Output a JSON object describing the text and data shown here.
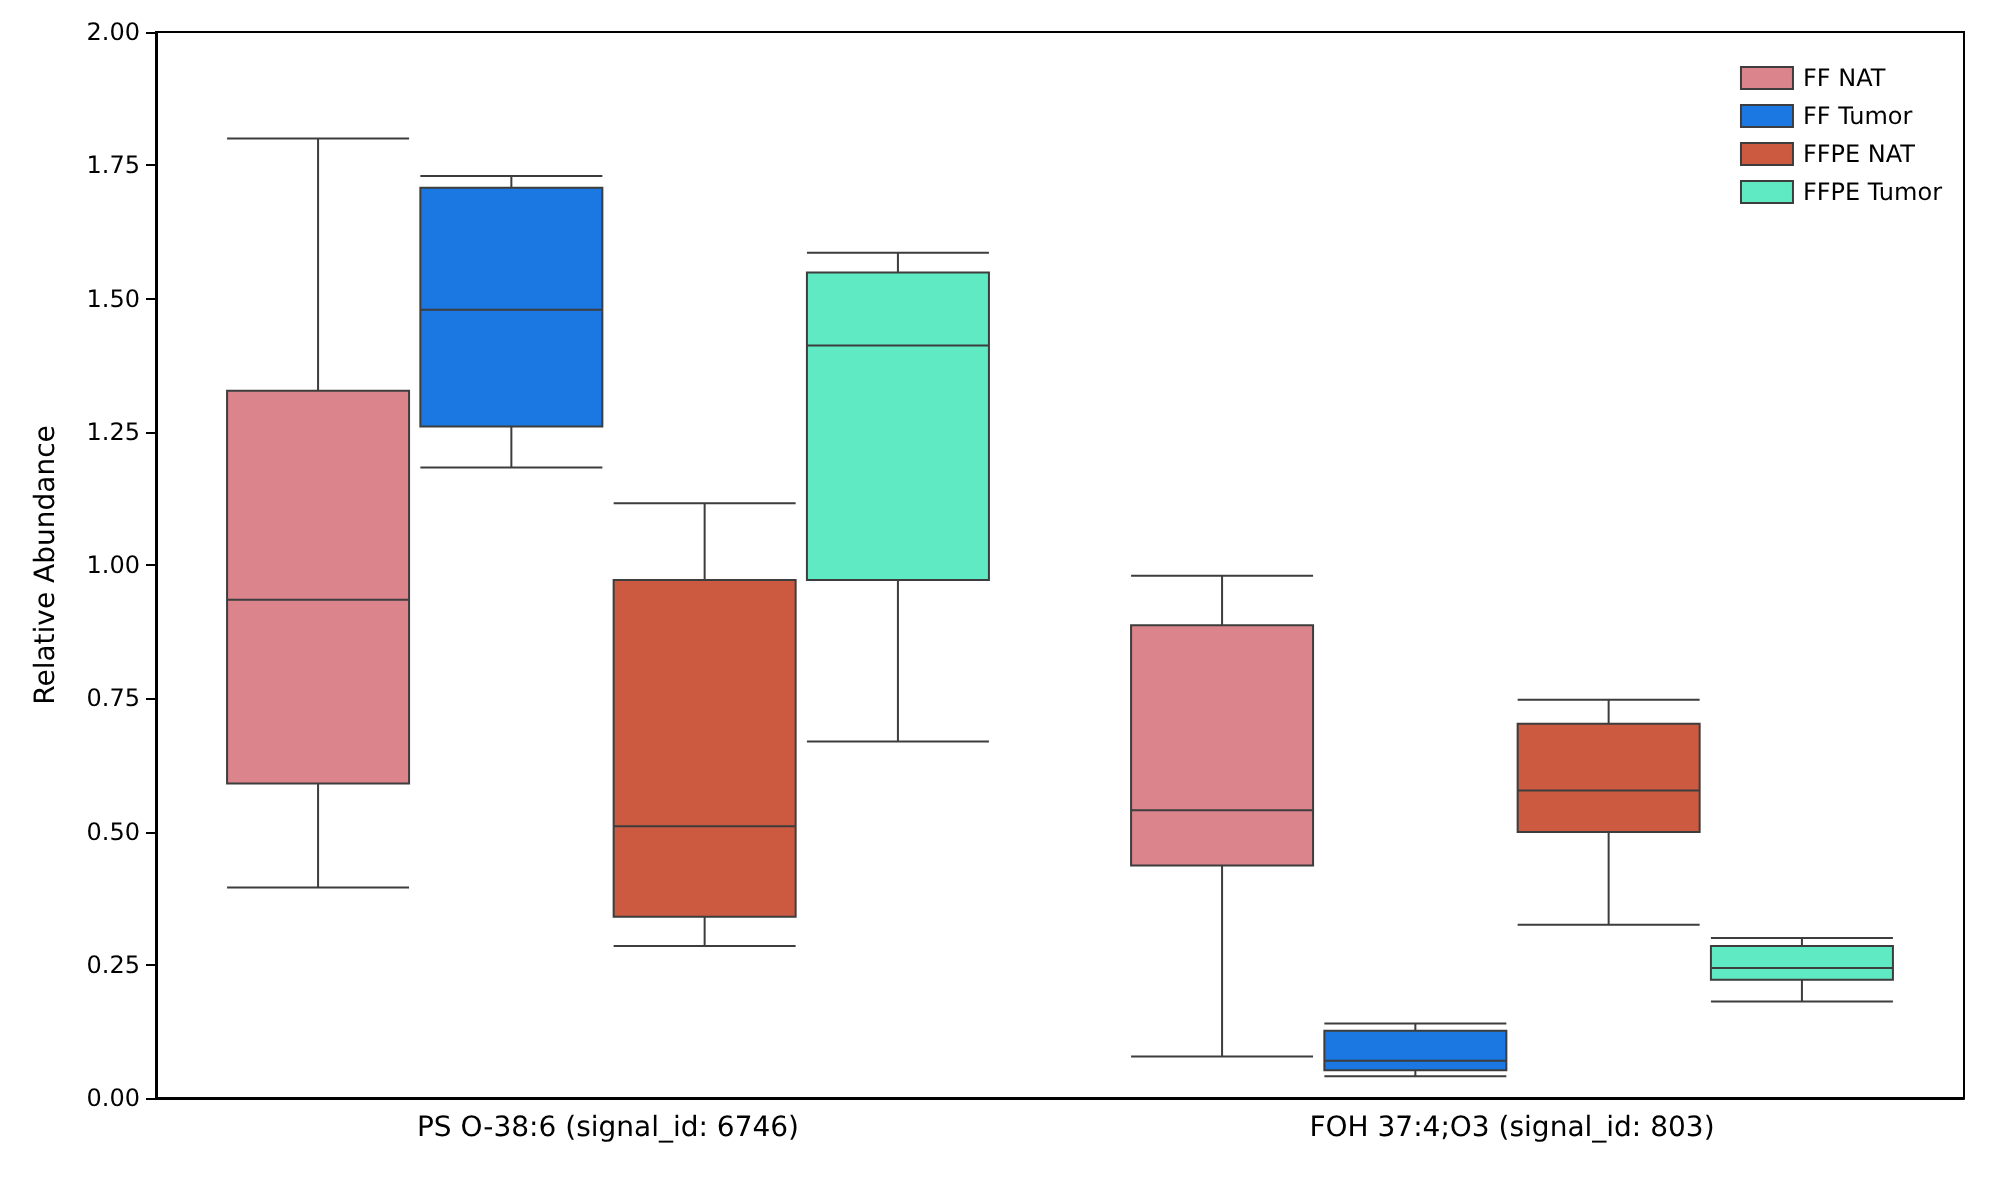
{
  "chart_data": {
    "type": "box",
    "ylabel": "Relative Abundance",
    "categories": [
      "PS O-38:6 (signal_id: 6746)",
      "FOH 37:4;O3 (signal_id: 803)"
    ],
    "ylim": [
      0,
      2
    ],
    "yticks": [
      {
        "value": 0,
        "label": "0.00"
      },
      {
        "value": 0.25,
        "label": "0.25"
      },
      {
        "value": 0.5,
        "label": "0.50"
      },
      {
        "value": 0.75,
        "label": "0.75"
      },
      {
        "value": 1,
        "label": "1.00"
      },
      {
        "value": 1.25,
        "label": "1.25"
      },
      {
        "value": 1.5,
        "label": "1.50"
      },
      {
        "value": 1.75,
        "label": "1.75"
      },
      {
        "value": 2,
        "label": "2.00"
      }
    ],
    "grid": false,
    "legend": "top right",
    "series": [
      {
        "name": "FF NAT",
        "color": "#db848c",
        "boxes": [
          {
            "low": 0.395,
            "q1": 0.59,
            "median": 0.935,
            "q3": 1.327,
            "high": 1.8
          },
          {
            "low": 0.078,
            "q1": 0.436,
            "median": 0.54,
            "q3": 0.887,
            "high": 0.98
          }
        ]
      },
      {
        "name": "FF Tumor",
        "color": "#1b78e2",
        "boxes": [
          {
            "low": 1.183,
            "q1": 1.26,
            "median": 1.479,
            "q3": 1.708,
            "high": 1.73
          },
          {
            "low": 0.041,
            "q1": 0.052,
            "median": 0.07,
            "q3": 0.126,
            "high": 0.14
          }
        ]
      },
      {
        "name": "FFPE NAT",
        "color": "#cc5a40",
        "boxes": [
          {
            "low": 0.285,
            "q1": 0.34,
            "median": 0.51,
            "q3": 0.972,
            "high": 1.116
          },
          {
            "low": 0.325,
            "q1": 0.499,
            "median": 0.577,
            "q3": 0.702,
            "high": 0.747
          }
        ]
      },
      {
        "name": "FFPE Tumor",
        "color": "#60eac3",
        "boxes": [
          {
            "low": 0.669,
            "q1": 0.972,
            "median": 1.412,
            "q3": 1.549,
            "high": 1.586
          },
          {
            "low": 0.181,
            "q1": 0.222,
            "median": 0.244,
            "q3": 0.285,
            "high": 0.3
          }
        ]
      }
    ]
  }
}
